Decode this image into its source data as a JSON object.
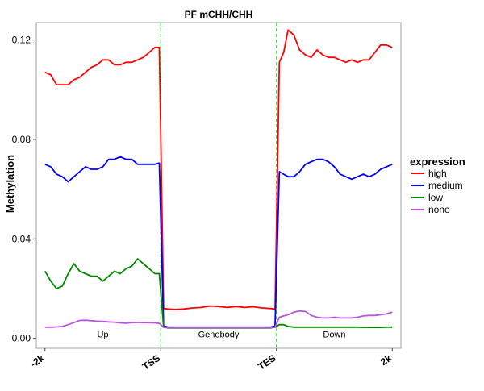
{
  "chart_data": {
    "type": "line",
    "title": "PF mCHH/CHH",
    "ylabel": "Methylation",
    "xlabel": "",
    "ylim": [
      -0.004,
      0.127
    ],
    "yticks": [
      0.0,
      0.04,
      0.08,
      0.12
    ],
    "ytick_labels": [
      "0.00",
      "0.04",
      "0.08",
      "0.12"
    ],
    "xlim": [
      -3,
      123
    ],
    "xticks": [
      0,
      40,
      80,
      120
    ],
    "xtick_labels": [
      "-2k",
      "TSS",
      "TES",
      "2k"
    ],
    "vlines": [
      40,
      80
    ],
    "vline_color": "#22dd22",
    "regions": [
      {
        "label": "Up",
        "x": 20
      },
      {
        "label": "Genebody",
        "x": 60
      },
      {
        "label": "Down",
        "x": 100
      }
    ],
    "grid": false,
    "legend": {
      "title": "expression",
      "position": "right"
    },
    "x": [
      0,
      2,
      4,
      6,
      8,
      10,
      12,
      14,
      16,
      18,
      20,
      22,
      24,
      26,
      28,
      30,
      32,
      34,
      36,
      38,
      39.5,
      41,
      42.5,
      45,
      48,
      51,
      54,
      57,
      60,
      63,
      66,
      69,
      72,
      75,
      78,
      79.5,
      81,
      82.5,
      84,
      86,
      88,
      90,
      92,
      94,
      96,
      98,
      100,
      102,
      104,
      106,
      108,
      110,
      112,
      114,
      116,
      118,
      120
    ],
    "series": [
      {
        "name": "high",
        "color": "#ff0000",
        "values": [
          0.107,
          0.106,
          0.102,
          0.102,
          0.102,
          0.104,
          0.105,
          0.107,
          0.109,
          0.11,
          0.112,
          0.112,
          0.11,
          0.11,
          0.111,
          0.111,
          0.112,
          0.113,
          0.115,
          0.117,
          0.117,
          0.012,
          0.0118,
          0.0116,
          0.0118,
          0.0122,
          0.0124,
          0.013,
          0.0128,
          0.0124,
          0.0128,
          0.0124,
          0.0127,
          0.0122,
          0.012,
          0.0118,
          0.111,
          0.115,
          0.124,
          0.122,
          0.116,
          0.114,
          0.113,
          0.116,
          0.114,
          0.113,
          0.113,
          0.112,
          0.111,
          0.112,
          0.111,
          0.112,
          0.112,
          0.115,
          0.118,
          0.118,
          0.117
        ]
      },
      {
        "name": "medium",
        "color": "#0000ff",
        "values": [
          0.07,
          0.069,
          0.066,
          0.065,
          0.063,
          0.065,
          0.067,
          0.069,
          0.068,
          0.068,
          0.069,
          0.072,
          0.072,
          0.073,
          0.072,
          0.072,
          0.07,
          0.07,
          0.07,
          0.07,
          0.0705,
          0.005,
          0.0045,
          0.0045,
          0.0045,
          0.0045,
          0.0045,
          0.0045,
          0.0045,
          0.0045,
          0.0045,
          0.0045,
          0.0045,
          0.0045,
          0.0045,
          0.005,
          0.067,
          0.066,
          0.065,
          0.065,
          0.067,
          0.07,
          0.071,
          0.072,
          0.072,
          0.071,
          0.069,
          0.066,
          0.065,
          0.064,
          0.065,
          0.066,
          0.065,
          0.066,
          0.068,
          0.069,
          0.07
        ]
      },
      {
        "name": "low",
        "color": "#008800",
        "values": [
          0.027,
          0.023,
          0.02,
          0.021,
          0.026,
          0.03,
          0.027,
          0.026,
          0.025,
          0.025,
          0.023,
          0.025,
          0.027,
          0.026,
          0.028,
          0.029,
          0.032,
          0.03,
          0.028,
          0.026,
          0.026,
          0.0045,
          0.0042,
          0.0042,
          0.0042,
          0.0042,
          0.0042,
          0.0042,
          0.0042,
          0.0042,
          0.0042,
          0.0042,
          0.0042,
          0.0042,
          0.0042,
          0.0045,
          0.0055,
          0.0055,
          0.0048,
          0.0045,
          0.0045,
          0.0045,
          0.0045,
          0.0045,
          0.0045,
          0.0045,
          0.0045,
          0.0045,
          0.0045,
          0.0045,
          0.0045,
          0.0044,
          0.0044,
          0.0044,
          0.0044,
          0.0045,
          0.0045
        ]
      },
      {
        "name": "none",
        "color": "#bb55dd",
        "values": [
          0.0045,
          0.0045,
          0.0046,
          0.0048,
          0.0055,
          0.0063,
          0.0072,
          0.0073,
          0.0071,
          0.0069,
          0.0068,
          0.0066,
          0.0065,
          0.0062,
          0.0061,
          0.0063,
          0.0064,
          0.0063,
          0.0063,
          0.0062,
          0.006,
          0.0044,
          0.0044,
          0.0044,
          0.0044,
          0.0044,
          0.0044,
          0.0044,
          0.0044,
          0.0044,
          0.0044,
          0.0044,
          0.0044,
          0.0044,
          0.0044,
          0.0045,
          0.0085,
          0.009,
          0.0095,
          0.0105,
          0.011,
          0.0108,
          0.0092,
          0.0085,
          0.0082,
          0.0082,
          0.0085,
          0.0082,
          0.0082,
          0.0082,
          0.0085,
          0.009,
          0.0092,
          0.0092,
          0.0095,
          0.0098,
          0.0105
        ]
      }
    ]
  }
}
